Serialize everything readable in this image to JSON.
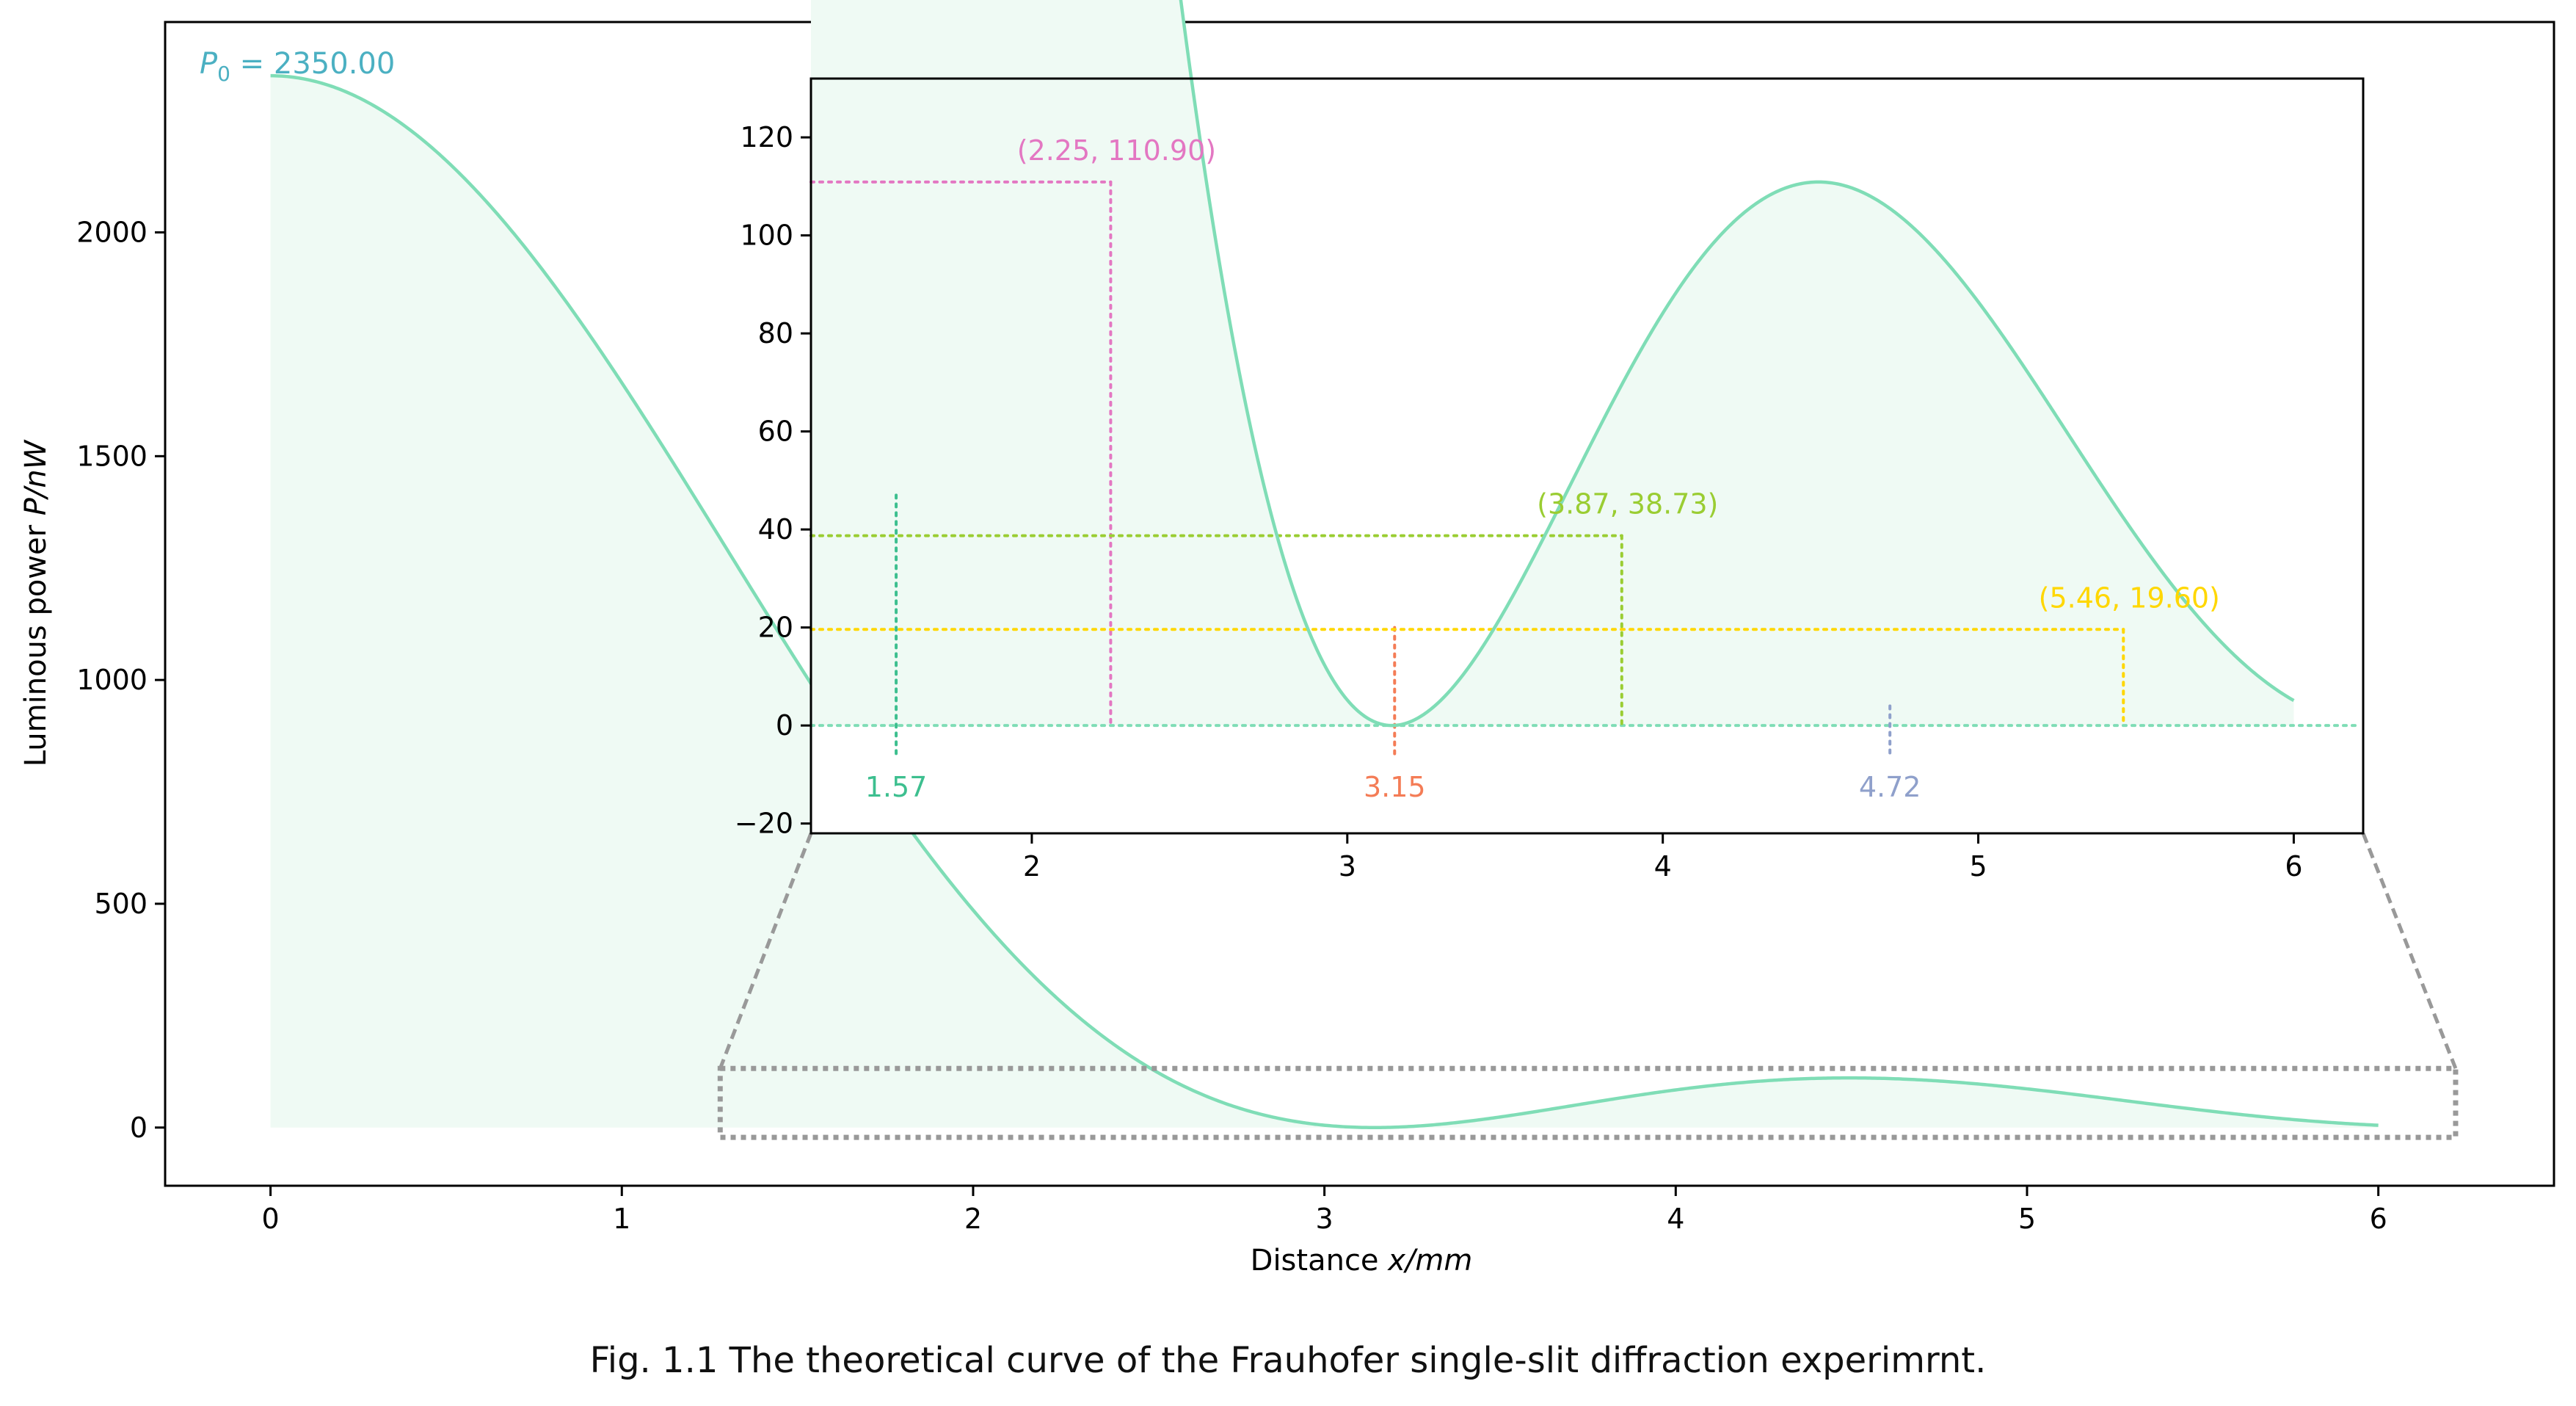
{
  "caption": "Fig. 1.1 The theoretical curve of the Frauhofer single-slit diffraction experimrnt.",
  "chart_data": [
    {
      "name": "main",
      "type": "area",
      "xlabel_prefix": "Distance ",
      "xlabel_var": "x/mm",
      "ylabel_prefix": "Luminous power ",
      "ylabel_var": "P/nW",
      "xlim": [
        -0.3,
        6.5
      ],
      "ylim": [
        -130,
        2470
      ],
      "xticks": [
        0,
        1,
        2,
        3,
        4,
        5,
        6
      ],
      "xtick_labels": [
        "0",
        "1",
        "2",
        "3",
        "4",
        "5",
        "6"
      ],
      "yticks": [
        0,
        500,
        1000,
        1500,
        2000
      ],
      "ytick_labels": [
        "0",
        "500",
        "1000",
        "1500",
        "2000"
      ],
      "grid": false,
      "series": [
        {
          "model": "P0*(sin(x)/x)^2",
          "P0": 2350,
          "x_range": [
            0,
            6
          ]
        }
      ],
      "annotation": {
        "text_prefix": "P",
        "text_sub": "0",
        "text_rest": " = 2350.00",
        "color": "#4BB0C2"
      },
      "zoom_box": {
        "x": [
          1.28,
          6.22
        ],
        "y": [
          -22,
          132
        ]
      }
    },
    {
      "name": "inset",
      "type": "area",
      "xlim": [
        1.3,
        6.22
      ],
      "ylim": [
        -22,
        132
      ],
      "xticks": [
        2,
        3,
        4,
        5,
        6
      ],
      "xtick_labels": [
        "2",
        "3",
        "4",
        "5",
        "6"
      ],
      "yticks": [
        -20,
        0,
        20,
        40,
        60,
        80,
        100,
        120
      ],
      "ytick_labels": [
        "−20",
        "0",
        "20",
        "40",
        "60",
        "80",
        "100",
        "120"
      ],
      "grid": false,
      "series": [
        {
          "model": "P0*(sin(x)/x)^2",
          "P0": 2350,
          "x_range": [
            1.3,
            6
          ]
        }
      ],
      "minima": [
        {
          "x": 1.57,
          "label": "1.57",
          "color": "#3DBF8F",
          "y_top": 47
        },
        {
          "x": 3.15,
          "label": "3.15",
          "color": "#F47C56",
          "y_top": 20
        },
        {
          "x": 4.72,
          "label": "4.72",
          "color": "#8FA0CB",
          "y_top": 4
        }
      ],
      "maxima": [
        {
          "x": 2.25,
          "y": 110.9,
          "label": "(2.25, 110.90)",
          "color": "#E377C2"
        },
        {
          "x": 3.87,
          "y": 38.73,
          "label": "(3.87, 38.73)",
          "color": "#9ACD32"
        },
        {
          "x": 5.46,
          "y": 19.6,
          "label": "(5.46, 19.60)",
          "color": "#FFD700"
        }
      ]
    }
  ],
  "colors": {
    "curve": "#7FDDB6",
    "fill": "#EFFAF4",
    "zoom": "#999999",
    "axis": "#000000"
  }
}
